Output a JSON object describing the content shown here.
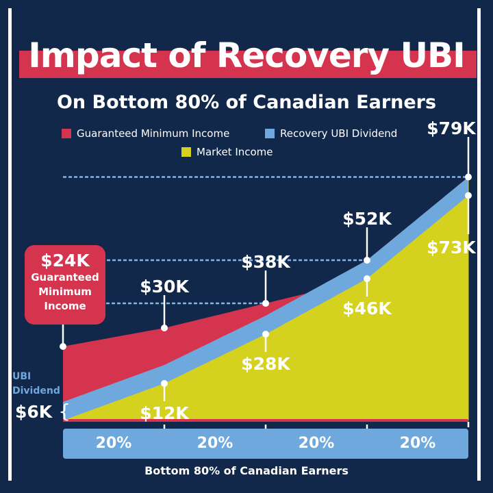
{
  "title": "Impact of Recovery UBI",
  "subtitle": "On Bottom 80% of Canadian Earners",
  "colors": {
    "background": "#11284a",
    "gmi": "#d5344f",
    "ubi": "#6fa8dc",
    "market": "#d4d21f"
  },
  "chart_data": {
    "type": "area",
    "title": "Impact of Recovery UBI",
    "subtitle": "On Bottom 80% of Canadian Earners",
    "xlabel": "Bottom 80% of Canadian Earners",
    "x": [
      0,
      20,
      40,
      60,
      80
    ],
    "x_segments": [
      "20%",
      "20%",
      "20%",
      "20%"
    ],
    "legend": [
      "Guaranteed Minimum Income",
      "Recovery UBI Dividend",
      "Market Income"
    ],
    "legend_placement": "top",
    "series": [
      {
        "name": "Guaranteed Minimum Income",
        "values": [
          24,
          30,
          38,
          null,
          null
        ]
      },
      {
        "name": "Recovery UBI Dividend",
        "values": [
          6,
          18,
          34,
          52,
          79
        ]
      },
      {
        "name": "Market Income",
        "values": [
          0,
          12,
          28,
          46,
          73
        ]
      }
    ],
    "annotations": {
      "gmi_box": {
        "value": "$24K",
        "text": [
          "Guaranteed",
          "Minimum",
          "Income"
        ]
      },
      "ubi_dividend": {
        "label": [
          "UBI",
          "Dividend"
        ],
        "value": "$6K"
      },
      "top_labels": [
        "$30K",
        "$38K",
        "$52K",
        "$79K"
      ],
      "bottom_labels": [
        "$12K",
        "$28K",
        "$46K",
        "$73K"
      ]
    },
    "grid": "dashed horizontal"
  }
}
